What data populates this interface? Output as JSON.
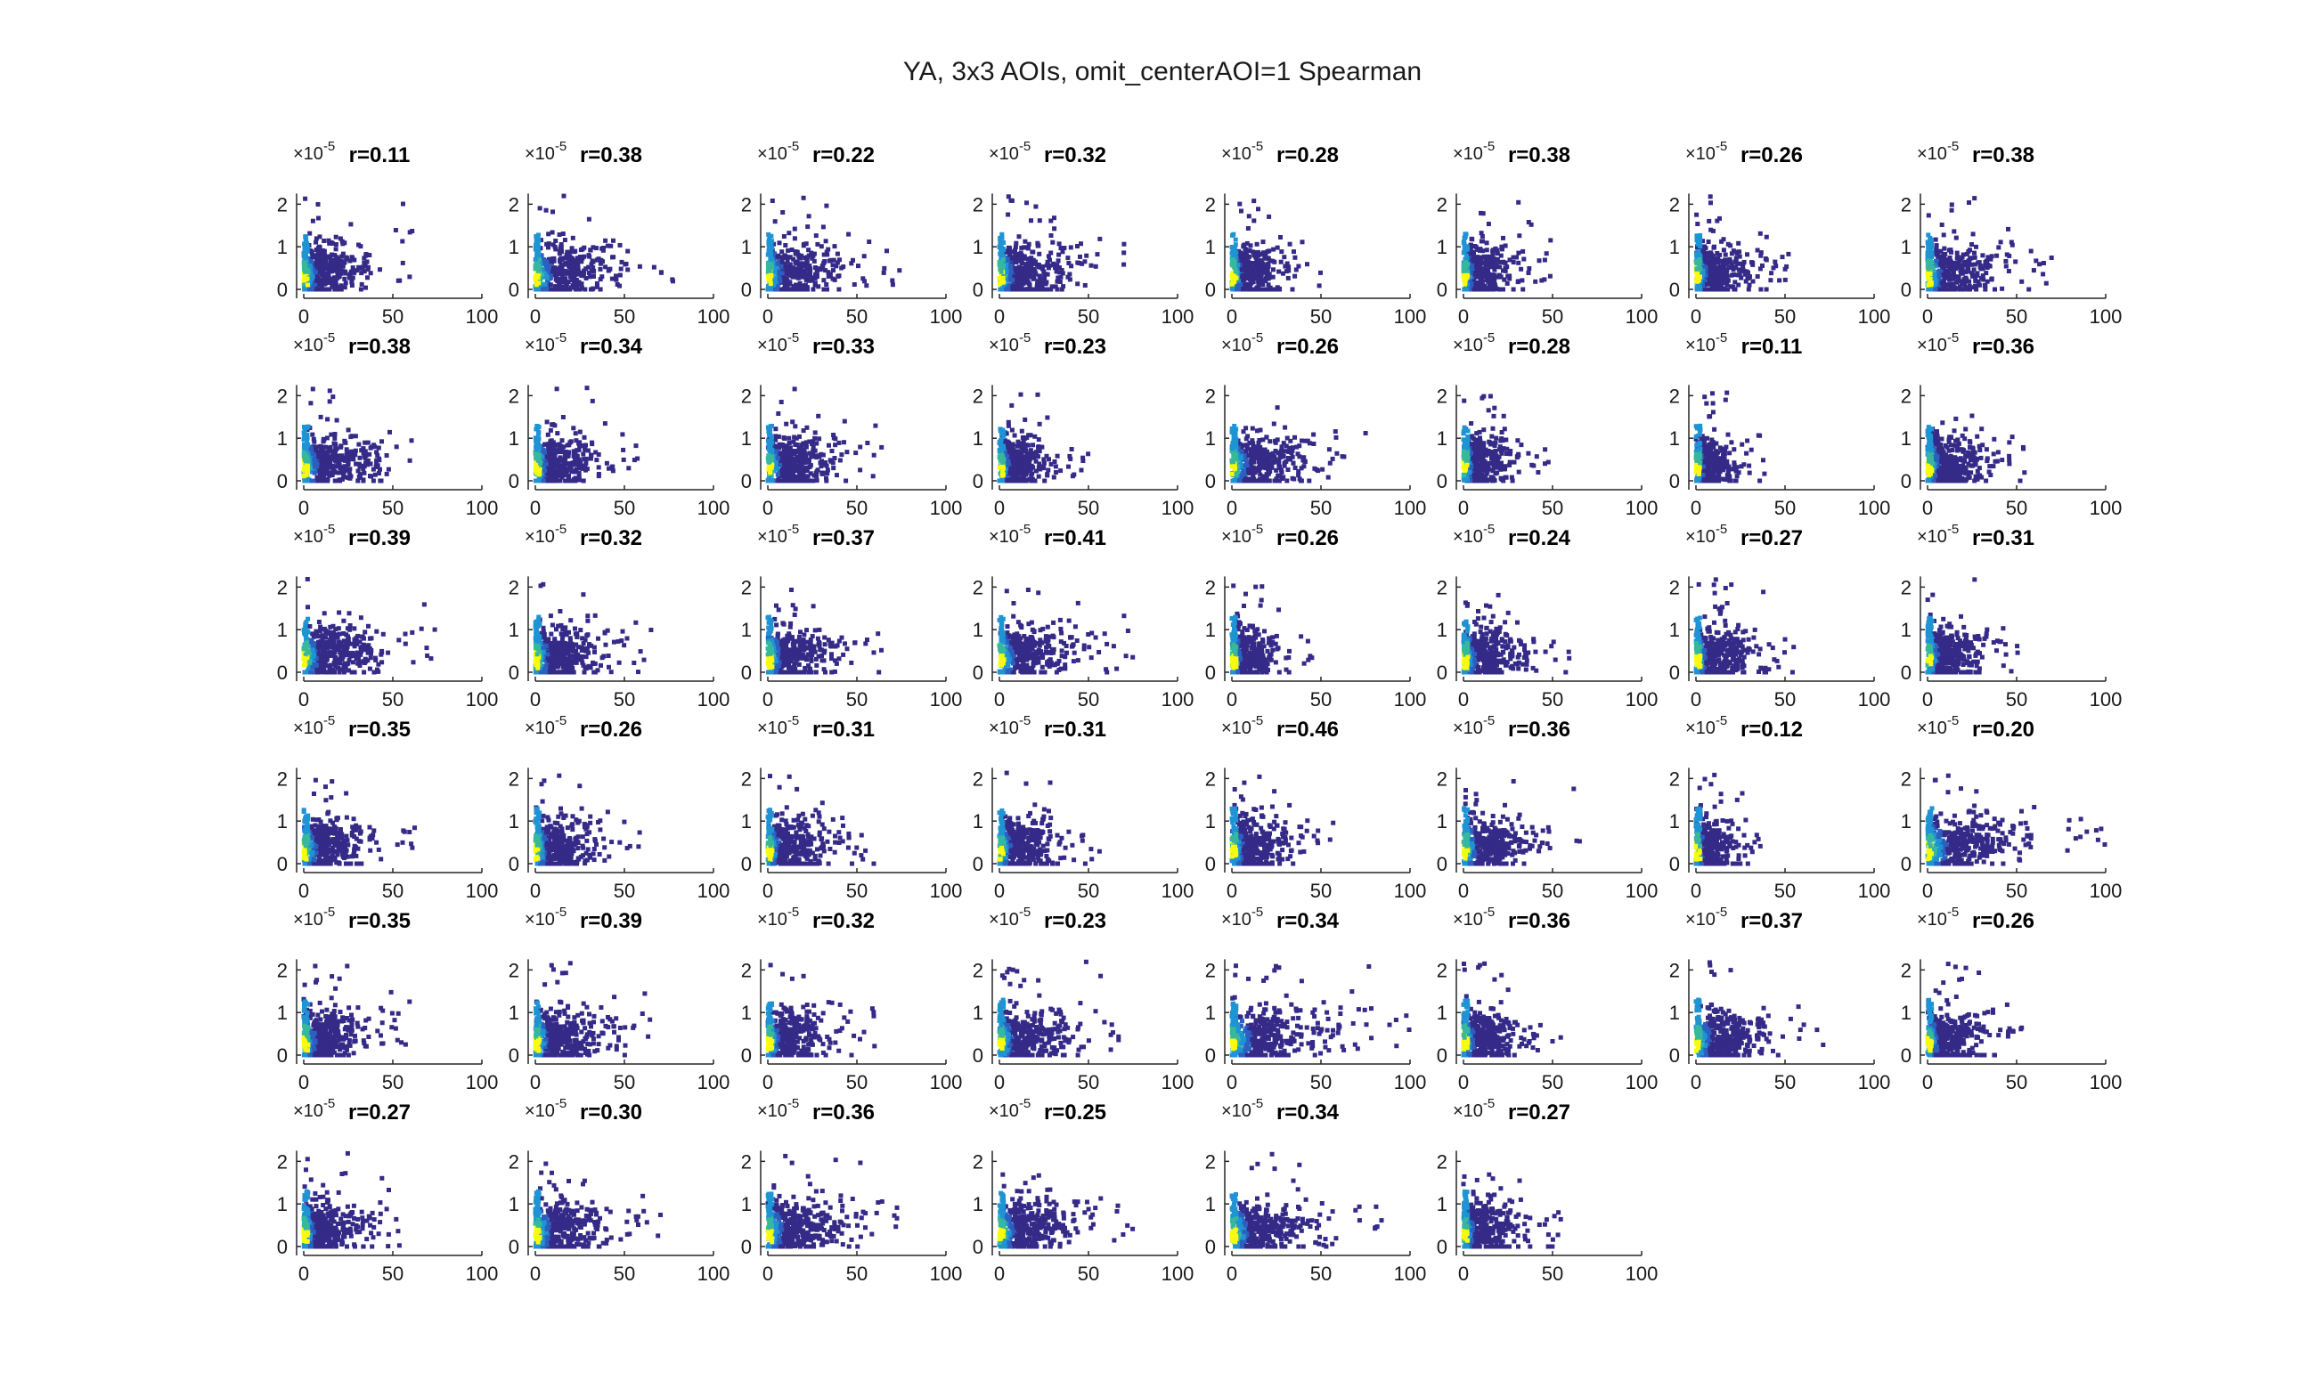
{
  "figure": {
    "title": "YA, 3x3 AOIs, omit_centerAOI=1 Spearman"
  },
  "colors": {
    "low_density": "#352a87",
    "mid_density": "#1f94d4",
    "high_density": "#37b89d",
    "peak_density": "#f9fb0e",
    "axis": "#262626"
  },
  "chart_data": [
    {
      "type": "scatter",
      "title": "r=0.11",
      "exponent": "×10^-5",
      "xlim": [
        0,
        100
      ],
      "ylim": [
        0,
        2
      ],
      "xticks": [
        "0",
        "50",
        "100"
      ],
      "yticks": [
        "0",
        "1",
        "2"
      ],
      "x_extent": 65,
      "y_extent": 2.2
    },
    {
      "type": "scatter",
      "title": "r=0.38",
      "exponent": "×10^-5",
      "xlim": [
        0,
        100
      ],
      "ylim": [
        0,
        2
      ],
      "xticks": [
        "0",
        "50",
        "100"
      ],
      "yticks": [
        "0",
        "1",
        "2"
      ],
      "x_extent": 85,
      "y_extent": 2.2
    },
    {
      "type": "scatter",
      "title": "r=0.22",
      "exponent": "×10^-5",
      "xlim": [
        0,
        100
      ],
      "ylim": [
        0,
        2
      ],
      "xticks": [
        "0",
        "50",
        "100"
      ],
      "yticks": [
        "0",
        "1",
        "2"
      ],
      "x_extent": 75,
      "y_extent": 2.2
    },
    {
      "type": "scatter",
      "title": "r=0.32",
      "exponent": "×10^-5",
      "xlim": [
        0,
        100
      ],
      "ylim": [
        0,
        2
      ],
      "xticks": [
        "0",
        "50",
        "100"
      ],
      "yticks": [
        "0",
        "1",
        "2"
      ],
      "x_extent": 70,
      "y_extent": 2.2
    },
    {
      "type": "scatter",
      "title": "r=0.28",
      "exponent": "×10^-5",
      "xlim": [
        0,
        100
      ],
      "ylim": [
        0,
        2
      ],
      "xticks": [
        "0",
        "50",
        "100"
      ],
      "yticks": [
        "0",
        "1",
        "2"
      ],
      "x_extent": 50,
      "y_extent": 2.2
    },
    {
      "type": "scatter",
      "title": "r=0.38",
      "exponent": "×10^-5",
      "xlim": [
        0,
        100
      ],
      "ylim": [
        0,
        2
      ],
      "xticks": [
        "0",
        "50",
        "100"
      ],
      "yticks": [
        "0",
        "1",
        "2"
      ],
      "x_extent": 50,
      "y_extent": 2.2
    },
    {
      "type": "scatter",
      "title": "r=0.26",
      "exponent": "×10^-5",
      "xlim": [
        0,
        100
      ],
      "ylim": [
        0,
        2
      ],
      "xticks": [
        "0",
        "50",
        "100"
      ],
      "yticks": [
        "0",
        "1",
        "2"
      ],
      "x_extent": 55,
      "y_extent": 2.2
    },
    {
      "type": "scatter",
      "title": "r=0.38",
      "exponent": "×10^-5",
      "xlim": [
        0,
        100
      ],
      "ylim": [
        0,
        2
      ],
      "xticks": [
        "0",
        "50",
        "100"
      ],
      "yticks": [
        "0",
        "1",
        "2"
      ],
      "x_extent": 70,
      "y_extent": 2.2
    },
    {
      "type": "scatter",
      "title": "r=0.38",
      "exponent": "×10^-5",
      "xlim": [
        0,
        100
      ],
      "ylim": [
        0,
        2
      ],
      "xticks": [
        "0",
        "50",
        "100"
      ],
      "yticks": [
        "0",
        "1",
        "2"
      ],
      "x_extent": 75,
      "y_extent": 2.2
    },
    {
      "type": "scatter",
      "title": "r=0.34",
      "exponent": "×10^-5",
      "xlim": [
        0,
        100
      ],
      "ylim": [
        0,
        2
      ],
      "xticks": [
        "0",
        "50",
        "100"
      ],
      "yticks": [
        "0",
        "1",
        "2"
      ],
      "x_extent": 60,
      "y_extent": 2.2
    },
    {
      "type": "scatter",
      "title": "r=0.33",
      "exponent": "×10^-5",
      "xlim": [
        0,
        100
      ],
      "ylim": [
        0,
        2
      ],
      "xticks": [
        "0",
        "50",
        "100"
      ],
      "yticks": [
        "0",
        "1",
        "2"
      ],
      "x_extent": 65,
      "y_extent": 2.2
    },
    {
      "type": "scatter",
      "title": "r=0.23",
      "exponent": "×10^-5",
      "xlim": [
        0,
        100
      ],
      "ylim": [
        0,
        2
      ],
      "xticks": [
        "0",
        "50",
        "100"
      ],
      "yticks": [
        "0",
        "1",
        "2"
      ],
      "x_extent": 50,
      "y_extent": 2.2
    },
    {
      "type": "scatter",
      "title": "r=0.26",
      "exponent": "×10^-5",
      "xlim": [
        0,
        100
      ],
      "ylim": [
        0,
        2
      ],
      "xticks": [
        "0",
        "50",
        "100"
      ],
      "yticks": [
        "0",
        "1",
        "2"
      ],
      "x_extent": 80,
      "y_extent": 2.2
    },
    {
      "type": "scatter",
      "title": "r=0.28",
      "exponent": "×10^-5",
      "xlim": [
        0,
        100
      ],
      "ylim": [
        0,
        2
      ],
      "xticks": [
        "0",
        "50",
        "100"
      ],
      "yticks": [
        "0",
        "1",
        "2"
      ],
      "x_extent": 50,
      "y_extent": 2.2
    },
    {
      "type": "scatter",
      "title": "r=0.11",
      "exponent": "×10^-5",
      "xlim": [
        0,
        100
      ],
      "ylim": [
        0,
        2
      ],
      "xticks": [
        "0",
        "50",
        "100"
      ],
      "yticks": [
        "0",
        "1",
        "2"
      ],
      "x_extent": 40,
      "y_extent": 2.2
    },
    {
      "type": "scatter",
      "title": "r=0.36",
      "exponent": "×10^-5",
      "xlim": [
        0,
        100
      ],
      "ylim": [
        0,
        2
      ],
      "xticks": [
        "0",
        "50",
        "100"
      ],
      "yticks": [
        "0",
        "1",
        "2"
      ],
      "x_extent": 55,
      "y_extent": 2.2
    },
    {
      "type": "scatter",
      "title": "r=0.39",
      "exponent": "×10^-5",
      "xlim": [
        0,
        100
      ],
      "ylim": [
        0,
        2
      ],
      "xticks": [
        "0",
        "50",
        "100"
      ],
      "yticks": [
        "0",
        "1",
        "2"
      ],
      "x_extent": 75,
      "y_extent": 2.2
    },
    {
      "type": "scatter",
      "title": "r=0.32",
      "exponent": "×10^-5",
      "xlim": [
        0,
        100
      ],
      "ylim": [
        0,
        2
      ],
      "xticks": [
        "0",
        "50",
        "100"
      ],
      "yticks": [
        "0",
        "1",
        "2"
      ],
      "x_extent": 65,
      "y_extent": 2.2
    },
    {
      "type": "scatter",
      "title": "r=0.37",
      "exponent": "×10^-5",
      "xlim": [
        0,
        100
      ],
      "ylim": [
        0,
        2
      ],
      "xticks": [
        "0",
        "50",
        "100"
      ],
      "yticks": [
        "0",
        "1",
        "2"
      ],
      "x_extent": 65,
      "y_extent": 2.2
    },
    {
      "type": "scatter",
      "title": "r=0.41",
      "exponent": "×10^-5",
      "xlim": [
        0,
        100
      ],
      "ylim": [
        0,
        2
      ],
      "xticks": [
        "0",
        "50",
        "100"
      ],
      "yticks": [
        "0",
        "1",
        "2"
      ],
      "x_extent": 75,
      "y_extent": 2.2
    },
    {
      "type": "scatter",
      "title": "r=0.26",
      "exponent": "×10^-5",
      "xlim": [
        0,
        100
      ],
      "ylim": [
        0,
        2
      ],
      "xticks": [
        "0",
        "50",
        "100"
      ],
      "yticks": [
        "0",
        "1",
        "2"
      ],
      "x_extent": 45,
      "y_extent": 2.2
    },
    {
      "type": "scatter",
      "title": "r=0.24",
      "exponent": "×10^-5",
      "xlim": [
        0,
        100
      ],
      "ylim": [
        0,
        2
      ],
      "xticks": [
        "0",
        "50",
        "100"
      ],
      "yticks": [
        "0",
        "1",
        "2"
      ],
      "x_extent": 60,
      "y_extent": 2.2
    },
    {
      "type": "scatter",
      "title": "r=0.27",
      "exponent": "×10^-5",
      "xlim": [
        0,
        100
      ],
      "ylim": [
        0,
        2
      ],
      "xticks": [
        "0",
        "50",
        "100"
      ],
      "yticks": [
        "0",
        "1",
        "2"
      ],
      "x_extent": 55,
      "y_extent": 2.2
    },
    {
      "type": "scatter",
      "title": "r=0.31",
      "exponent": "×10^-5",
      "xlim": [
        0,
        100
      ],
      "ylim": [
        0,
        2
      ],
      "xticks": [
        "0",
        "50",
        "100"
      ],
      "yticks": [
        "0",
        "1",
        "2"
      ],
      "x_extent": 55,
      "y_extent": 2.2
    },
    {
      "type": "scatter",
      "title": "r=0.35",
      "exponent": "×10^-5",
      "xlim": [
        0,
        100
      ],
      "ylim": [
        0,
        2
      ],
      "xticks": [
        "0",
        "50",
        "100"
      ],
      "yticks": [
        "0",
        "1",
        "2"
      ],
      "x_extent": 65,
      "y_extent": 2.2
    },
    {
      "type": "scatter",
      "title": "r=0.26",
      "exponent": "×10^-5",
      "xlim": [
        0,
        100
      ],
      "ylim": [
        0,
        2
      ],
      "xticks": [
        "0",
        "50",
        "100"
      ],
      "yticks": [
        "0",
        "1",
        "2"
      ],
      "x_extent": 60,
      "y_extent": 2.2
    },
    {
      "type": "scatter",
      "title": "r=0.31",
      "exponent": "×10^-5",
      "xlim": [
        0,
        100
      ],
      "ylim": [
        0,
        2
      ],
      "xticks": [
        "0",
        "50",
        "100"
      ],
      "yticks": [
        "0",
        "1",
        "2"
      ],
      "x_extent": 60,
      "y_extent": 2.2
    },
    {
      "type": "scatter",
      "title": "r=0.31",
      "exponent": "×10^-5",
      "xlim": [
        0,
        100
      ],
      "ylim": [
        0,
        2
      ],
      "xticks": [
        "0",
        "50",
        "100"
      ],
      "yticks": [
        "0",
        "1",
        "2"
      ],
      "x_extent": 60,
      "y_extent": 2.2
    },
    {
      "type": "scatter",
      "title": "r=0.46",
      "exponent": "×10^-5",
      "xlim": [
        0,
        100
      ],
      "ylim": [
        0,
        2
      ],
      "xticks": [
        "0",
        "50",
        "100"
      ],
      "yticks": [
        "0",
        "1",
        "2"
      ],
      "x_extent": 60,
      "y_extent": 2.2
    },
    {
      "type": "scatter",
      "title": "r=0.36",
      "exponent": "×10^-5",
      "xlim": [
        0,
        100
      ],
      "ylim": [
        0,
        2
      ],
      "xticks": [
        "0",
        "50",
        "100"
      ],
      "yticks": [
        "0",
        "1",
        "2"
      ],
      "x_extent": 70,
      "y_extent": 2.2
    },
    {
      "type": "scatter",
      "title": "r=0.12",
      "exponent": "×10^-5",
      "xlim": [
        0,
        100
      ],
      "ylim": [
        0,
        2
      ],
      "xticks": [
        "0",
        "50",
        "100"
      ],
      "yticks": [
        "0",
        "1",
        "2"
      ],
      "x_extent": 40,
      "y_extent": 2.2
    },
    {
      "type": "scatter",
      "title": "r=0.20",
      "exponent": "×10^-5",
      "xlim": [
        0,
        100
      ],
      "ylim": [
        0,
        2
      ],
      "xticks": [
        "0",
        "50",
        "100"
      ],
      "yticks": [
        "0",
        "1",
        "2"
      ],
      "x_extent": 100,
      "y_extent": 2.2
    },
    {
      "type": "scatter",
      "title": "r=0.35",
      "exponent": "×10^-5",
      "xlim": [
        0,
        100
      ],
      "ylim": [
        0,
        2
      ],
      "xticks": [
        "0",
        "50",
        "100"
      ],
      "yticks": [
        "0",
        "1",
        "2"
      ],
      "x_extent": 60,
      "y_extent": 2.2
    },
    {
      "type": "scatter",
      "title": "r=0.39",
      "exponent": "×10^-5",
      "xlim": [
        0,
        100
      ],
      "ylim": [
        0,
        2
      ],
      "xticks": [
        "0",
        "50",
        "100"
      ],
      "yticks": [
        "0",
        "1",
        "2"
      ],
      "x_extent": 65,
      "y_extent": 2.2
    },
    {
      "type": "scatter",
      "title": "r=0.32",
      "exponent": "×10^-5",
      "xlim": [
        0,
        100
      ],
      "ylim": [
        0,
        2
      ],
      "xticks": [
        "0",
        "50",
        "100"
      ],
      "yticks": [
        "0",
        "1",
        "2"
      ],
      "x_extent": 60,
      "y_extent": 2.2
    },
    {
      "type": "scatter",
      "title": "r=0.23",
      "exponent": "×10^-5",
      "xlim": [
        0,
        100
      ],
      "ylim": [
        0,
        2
      ],
      "xticks": [
        "0",
        "50",
        "100"
      ],
      "yticks": [
        "0",
        "1",
        "2"
      ],
      "x_extent": 70,
      "y_extent": 2.2
    },
    {
      "type": "scatter",
      "title": "r=0.34",
      "exponent": "×10^-5",
      "xlim": [
        0,
        100
      ],
      "ylim": [
        0,
        2
      ],
      "xticks": [
        "0",
        "50",
        "100"
      ],
      "yticks": [
        "0",
        "1",
        "2"
      ],
      "x_extent": 100,
      "y_extent": 2.2
    },
    {
      "type": "scatter",
      "title": "r=0.36",
      "exponent": "×10^-5",
      "xlim": [
        0,
        100
      ],
      "ylim": [
        0,
        2
      ],
      "xticks": [
        "0",
        "50",
        "100"
      ],
      "yticks": [
        "0",
        "1",
        "2"
      ],
      "x_extent": 55,
      "y_extent": 2.2
    },
    {
      "type": "scatter",
      "title": "r=0.37",
      "exponent": "×10^-5",
      "xlim": [
        0,
        100
      ],
      "ylim": [
        0,
        2
      ],
      "xticks": [
        "0",
        "50",
        "100"
      ],
      "yticks": [
        "0",
        "1",
        "2"
      ],
      "x_extent": 75,
      "y_extent": 2.2
    },
    {
      "type": "scatter",
      "title": "r=0.26",
      "exponent": "×10^-5",
      "xlim": [
        0,
        100
      ],
      "ylim": [
        0,
        2
      ],
      "xticks": [
        "0",
        "50",
        "100"
      ],
      "yticks": [
        "0",
        "1",
        "2"
      ],
      "x_extent": 55,
      "y_extent": 2.2
    },
    {
      "type": "scatter",
      "title": "r=0.27",
      "exponent": "×10^-5",
      "xlim": [
        0,
        100
      ],
      "ylim": [
        0,
        2
      ],
      "xticks": [
        "0",
        "50",
        "100"
      ],
      "yticks": [
        "0",
        "1",
        "2"
      ],
      "x_extent": 55,
      "y_extent": 2.2
    },
    {
      "type": "scatter",
      "title": "r=0.30",
      "exponent": "×10^-5",
      "xlim": [
        0,
        100
      ],
      "ylim": [
        0,
        2
      ],
      "xticks": [
        "0",
        "50",
        "100"
      ],
      "yticks": [
        "0",
        "1",
        "2"
      ],
      "x_extent": 75,
      "y_extent": 2.2
    },
    {
      "type": "scatter",
      "title": "r=0.36",
      "exponent": "×10^-5",
      "xlim": [
        0,
        100
      ],
      "ylim": [
        0,
        2
      ],
      "xticks": [
        "0",
        "50",
        "100"
      ],
      "yticks": [
        "0",
        "1",
        "2"
      ],
      "x_extent": 75,
      "y_extent": 2.2
    },
    {
      "type": "scatter",
      "title": "r=0.25",
      "exponent": "×10^-5",
      "xlim": [
        0,
        100
      ],
      "ylim": [
        0,
        2
      ],
      "xticks": [
        "0",
        "50",
        "100"
      ],
      "yticks": [
        "0",
        "1",
        "2"
      ],
      "x_extent": 75,
      "y_extent": 2.2
    },
    {
      "type": "scatter",
      "title": "r=0.34",
      "exponent": "×10^-5",
      "xlim": [
        0,
        100
      ],
      "ylim": [
        0,
        2
      ],
      "xticks": [
        "0",
        "50",
        "100"
      ],
      "yticks": [
        "0",
        "1",
        "2"
      ],
      "x_extent": 85,
      "y_extent": 2.2
    },
    {
      "type": "scatter",
      "title": "r=0.27",
      "exponent": "×10^-5",
      "xlim": [
        0,
        100
      ],
      "ylim": [
        0,
        2
      ],
      "xticks": [
        "0",
        "50",
        "100"
      ],
      "yticks": [
        "0",
        "1",
        "2"
      ],
      "x_extent": 55,
      "y_extent": 2.2
    }
  ]
}
